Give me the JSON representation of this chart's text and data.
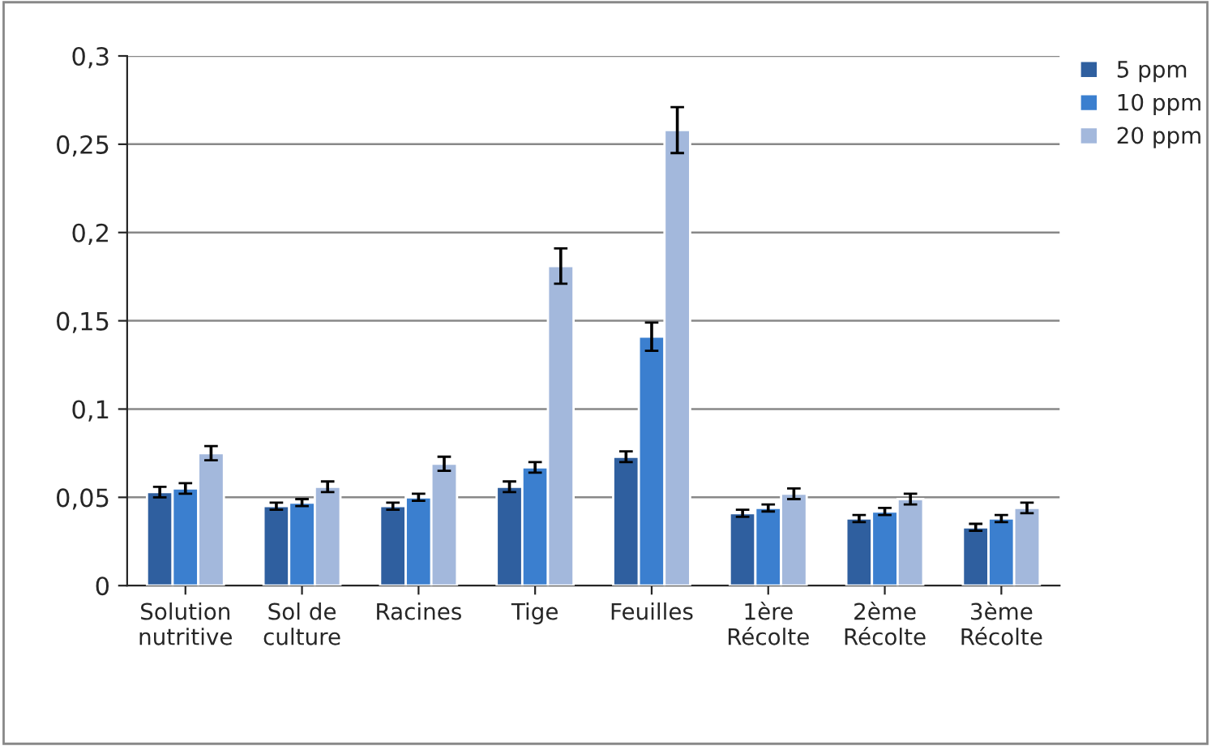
{
  "chart_data": {
    "type": "bar",
    "categories": [
      "Solution\nnutritive",
      "Sol de\nculture",
      "Racines",
      "Tige",
      "Feuilles",
      "1ère\nRécolte",
      "2ème\nRécolte",
      "3ème\nRécolte"
    ],
    "series": [
      {
        "name": "5 ppm",
        "color": "#2f5f9f",
        "values": [
          0.053,
          0.045,
          0.045,
          0.056,
          0.073,
          0.041,
          0.038,
          0.033
        ],
        "errors": [
          0.003,
          0.002,
          0.002,
          0.003,
          0.003,
          0.002,
          0.002,
          0.002
        ]
      },
      {
        "name": "10 ppm",
        "color": "#3b7fcf",
        "values": [
          0.055,
          0.047,
          0.05,
          0.067,
          0.141,
          0.044,
          0.042,
          0.038
        ],
        "errors": [
          0.003,
          0.002,
          0.002,
          0.003,
          0.008,
          0.002,
          0.002,
          0.002
        ]
      },
      {
        "name": "20 ppm",
        "color": "#a3b8dc",
        "values": [
          0.075,
          0.056,
          0.069,
          0.181,
          0.258,
          0.052,
          0.049,
          0.044
        ],
        "errors": [
          0.004,
          0.003,
          0.004,
          0.01,
          0.013,
          0.003,
          0.003,
          0.003
        ]
      }
    ],
    "ylim": [
      0,
      0.3
    ],
    "yticks": [
      {
        "value": 0,
        "label": "0"
      },
      {
        "value": 0.05,
        "label": "0,05"
      },
      {
        "value": 0.1,
        "label": "0,1"
      },
      {
        "value": 0.15,
        "label": "0,15"
      },
      {
        "value": 0.2,
        "label": "0,2"
      },
      {
        "value": 0.25,
        "label": "0,25"
      },
      {
        "value": 0.3,
        "label": "0,3"
      }
    ],
    "grid": "y",
    "legend": "top right"
  }
}
